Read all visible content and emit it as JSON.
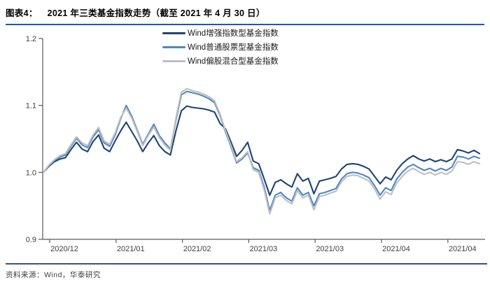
{
  "figure": {
    "label": "图表4：",
    "title": "2021 年三类基金指数走势（截至 2021 年 4 月 30 日）",
    "source": "资料来源：Wind，华泰研究"
  },
  "colors": {
    "rule_blue": "#2F5496",
    "axis": "#595959",
    "tick_text": "#404040"
  },
  "chart_data": {
    "type": "line",
    "title": "2021 年三类基金指数走势（截至 2021 年 4 月 30 日）",
    "xlabel": "",
    "ylabel": "",
    "grid": false,
    "legend_position": "top-center-inside",
    "x_axis": {
      "tick_labels": [
        "2020/12",
        "2021/01",
        "2021/02",
        "2021/03",
        "2021/03",
        "2021/04",
        "2021/04"
      ]
    },
    "y_axis": {
      "tick_labels": [
        "0.9",
        "1.0",
        "1.1",
        "1.2"
      ],
      "range": [
        0.9,
        1.2
      ]
    },
    "series": [
      {
        "name": "Wind增强指数型基金指数",
        "color": "#1F4471",
        "values": [
          1.0,
          1.009,
          1.016,
          1.02,
          1.022,
          1.034,
          1.045,
          1.035,
          1.031,
          1.046,
          1.056,
          1.036,
          1.031,
          1.047,
          1.062,
          1.075,
          1.061,
          1.047,
          1.031,
          1.044,
          1.055,
          1.04,
          1.031,
          1.026,
          1.062,
          1.092,
          1.099,
          1.097,
          1.096,
          1.095,
          1.093,
          1.09,
          1.073,
          1.065,
          1.045,
          1.024,
          1.033,
          1.045,
          1.017,
          1.013,
          0.99,
          0.966,
          0.985,
          0.989,
          0.983,
          0.978,
          0.998,
          0.987,
          0.991,
          0.968,
          0.987,
          0.989,
          0.991,
          0.994,
          1.005,
          1.012,
          1.013,
          1.012,
          1.009,
          1.005,
          0.994,
          0.983,
          0.993,
          0.989,
          1.003,
          1.013,
          1.02,
          1.025,
          1.02,
          1.017,
          1.02,
          1.016,
          1.019,
          1.016,
          1.02,
          1.034,
          1.032,
          1.029,
          1.033,
          1.028
        ]
      },
      {
        "name": "Wind普通股票型基金指数",
        "color": "#4E86C7",
        "values": [
          1.0,
          1.01,
          1.018,
          1.023,
          1.026,
          1.039,
          1.051,
          1.041,
          1.037,
          1.053,
          1.064,
          1.044,
          1.039,
          1.056,
          1.08,
          1.1,
          1.084,
          1.063,
          1.042,
          1.057,
          1.072,
          1.055,
          1.044,
          1.035,
          1.078,
          1.116,
          1.121,
          1.119,
          1.117,
          1.114,
          1.11,
          1.104,
          1.085,
          1.06,
          1.038,
          1.014,
          1.02,
          1.029,
          1.007,
          1.003,
          0.978,
          0.943,
          0.966,
          0.97,
          0.962,
          0.957,
          0.977,
          0.966,
          0.97,
          0.95,
          0.968,
          0.97,
          0.973,
          0.976,
          0.99,
          0.998,
          1.0,
          0.999,
          0.996,
          0.992,
          0.98,
          0.966,
          0.977,
          0.973,
          0.99,
          1.0,
          1.008,
          1.012,
          1.007,
          1.003,
          1.006,
          1.002,
          1.006,
          1.003,
          1.008,
          1.024,
          1.023,
          1.02,
          1.024,
          1.021
        ]
      },
      {
        "name": "Wind偏股混合型基金指数",
        "color": "#BFBFBF",
        "values": [
          1.0,
          1.011,
          1.019,
          1.025,
          1.028,
          1.041,
          1.053,
          1.044,
          1.04,
          1.056,
          1.067,
          1.047,
          1.042,
          1.059,
          1.082,
          1.096,
          1.081,
          1.061,
          1.04,
          1.055,
          1.068,
          1.052,
          1.041,
          1.033,
          1.081,
          1.12,
          1.125,
          1.122,
          1.12,
          1.117,
          1.113,
          1.107,
          1.087,
          1.062,
          1.04,
          1.016,
          1.022,
          1.031,
          1.004,
          1.0,
          0.974,
          0.938,
          0.962,
          0.966,
          0.958,
          0.953,
          0.973,
          0.962,
          0.966,
          0.944,
          0.964,
          0.966,
          0.969,
          0.972,
          0.986,
          0.994,
          0.996,
          0.995,
          0.991,
          0.987,
          0.975,
          0.96,
          0.971,
          0.967,
          0.984,
          0.994,
          1.002,
          1.006,
          1.001,
          0.997,
          1.0,
          0.996,
          1.0,
          0.997,
          1.002,
          1.016,
          1.015,
          1.012,
          1.016,
          1.013
        ]
      }
    ]
  }
}
